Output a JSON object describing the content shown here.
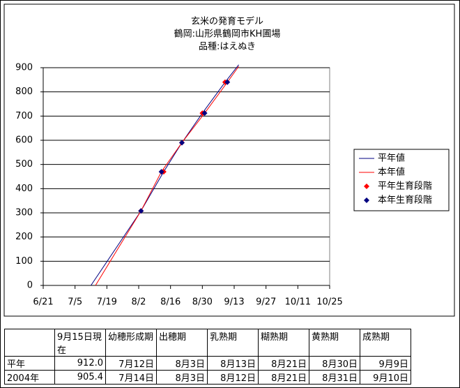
{
  "chart_data": {
    "type": "line",
    "title": [
      "玄米の発育モデル",
      "鶴岡:山形県鶴岡市KH圃場",
      "品種:はえぬき"
    ],
    "xlim": [
      173,
      299
    ],
    "xticks": [
      {
        "value": 173,
        "label": "6/21"
      },
      {
        "value": 187,
        "label": "7/5"
      },
      {
        "value": 201,
        "label": "7/19"
      },
      {
        "value": 215,
        "label": "8/2"
      },
      {
        "value": 229,
        "label": "8/16"
      },
      {
        "value": 243,
        "label": "8/30"
      },
      {
        "value": 257,
        "label": "9/13"
      },
      {
        "value": 271,
        "label": "9/27"
      },
      {
        "value": 285,
        "label": "10/11"
      },
      {
        "value": 299,
        "label": "10/25"
      }
    ],
    "ylim": [
      0,
      900
    ],
    "yticks": [
      0,
      100,
      200,
      300,
      400,
      500,
      600,
      700,
      800,
      900
    ],
    "grid": true,
    "series": [
      {
        "name": "平年値",
        "color": "#000080",
        "style": "line",
        "x": [
          194,
          216,
          226,
          234,
          243,
          253,
          259
        ],
        "values": [
          0,
          308,
          470,
          590,
          712,
          840,
          912
        ]
      },
      {
        "name": "本年値",
        "color": "#ff0000",
        "style": "line",
        "x": [
          196,
          216,
          225,
          234,
          244,
          254,
          259
        ],
        "values": [
          0,
          308,
          470,
          590,
          712,
          840,
          905.4
        ]
      },
      {
        "name": "平年生育段階",
        "color": "#ff0000",
        "style": "marker",
        "x": [
          216,
          226,
          234,
          243,
          253
        ],
        "values": [
          308,
          470,
          590,
          712,
          840
        ]
      },
      {
        "name": "本年生育段階",
        "color": "#000080",
        "style": "marker",
        "x": [
          216,
          225,
          234,
          244,
          254
        ],
        "values": [
          308,
          470,
          590,
          712,
          840
        ]
      }
    ]
  },
  "table": {
    "header": [
      "9月15日現在",
      "幼穂形成期",
      "出穂期",
      "乳熟期",
      "糊熟期",
      "黄熟期",
      "成熟期"
    ],
    "rows": [
      [
        "平年",
        "912.0",
        "7月12日",
        "8月3日",
        "8月13日",
        "8月21日",
        "8月30日",
        "9月9日"
      ],
      [
        "2004年",
        "905.4",
        "7月14日",
        "8月3日",
        "8月12日",
        "8月21日",
        "8月31日",
        "9月10日"
      ]
    ]
  }
}
